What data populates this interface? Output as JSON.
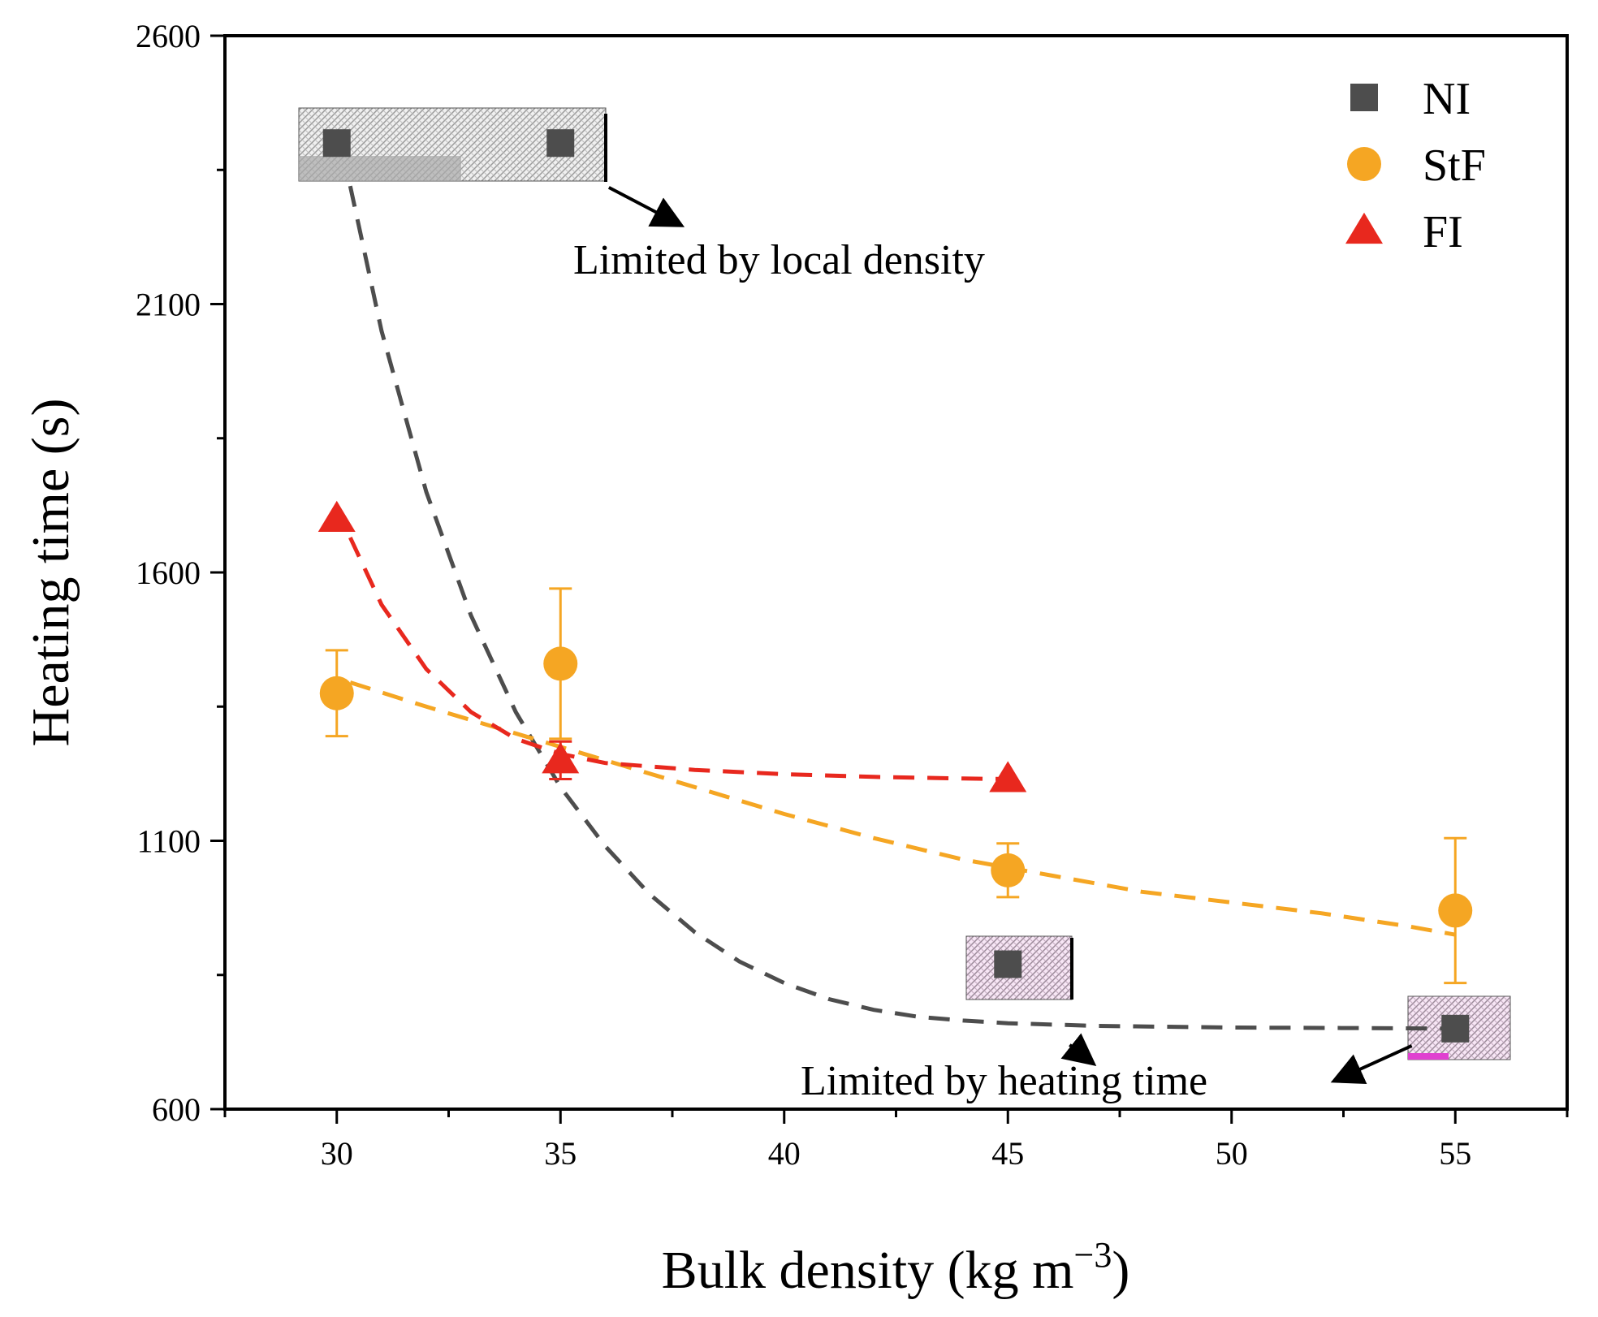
{
  "chart_data": {
    "type": "scatter",
    "xlabel": "Bulk density (kg m−3)",
    "ylabel": "Heating time (s)",
    "xlim": [
      27.5,
      57.5
    ],
    "ylim": [
      600,
      2600
    ],
    "x_ticks": [
      30,
      35,
      40,
      45,
      50,
      55
    ],
    "y_ticks": [
      600,
      1100,
      1600,
      2100,
      2600
    ],
    "legend_position": "top-right",
    "series": [
      {
        "name": "NI",
        "marker": "square",
        "color": "#4d4d4d",
        "points": [
          {
            "x": 30,
            "y": 2400
          },
          {
            "x": 35,
            "y": 2400
          },
          {
            "x": 45,
            "y": 870
          },
          {
            "x": 55,
            "y": 750
          }
        ],
        "fit": [
          {
            "x": 30.3,
            "y": 2320
          },
          {
            "x": 31,
            "y": 2050
          },
          {
            "x": 32,
            "y": 1750
          },
          {
            "x": 33,
            "y": 1520
          },
          {
            "x": 34,
            "y": 1340
          },
          {
            "x": 35,
            "y": 1200
          },
          {
            "x": 36,
            "y": 1090
          },
          {
            "x": 37,
            "y": 1000
          },
          {
            "x": 38,
            "y": 930
          },
          {
            "x": 39,
            "y": 875
          },
          {
            "x": 40,
            "y": 835
          },
          {
            "x": 41,
            "y": 805
          },
          {
            "x": 42,
            "y": 785
          },
          {
            "x": 43,
            "y": 772
          },
          {
            "x": 44,
            "y": 765
          },
          {
            "x": 45,
            "y": 760
          },
          {
            "x": 47,
            "y": 755
          },
          {
            "x": 50,
            "y": 752
          },
          {
            "x": 53,
            "y": 751
          },
          {
            "x": 55,
            "y": 750
          }
        ]
      },
      {
        "name": "StF",
        "marker": "circle",
        "color": "#f5a623",
        "points": [
          {
            "x": 30,
            "y": 1375,
            "err": 80
          },
          {
            "x": 35,
            "y": 1430,
            "err": 140
          },
          {
            "x": 45,
            "y": 1045,
            "err": 50
          },
          {
            "x": 55,
            "y": 970,
            "err": 135
          }
        ],
        "fit": [
          {
            "x": 30.3,
            "y": 1395
          },
          {
            "x": 32,
            "y": 1350
          },
          {
            "x": 34,
            "y": 1300
          },
          {
            "x": 36,
            "y": 1250
          },
          {
            "x": 38,
            "y": 1200
          },
          {
            "x": 40,
            "y": 1150
          },
          {
            "x": 42,
            "y": 1105
          },
          {
            "x": 44,
            "y": 1065
          },
          {
            "x": 46,
            "y": 1035
          },
          {
            "x": 48,
            "y": 1005
          },
          {
            "x": 50,
            "y": 985
          },
          {
            "x": 52,
            "y": 965
          },
          {
            "x": 54,
            "y": 940
          },
          {
            "x": 55,
            "y": 925
          }
        ]
      },
      {
        "name": "FI",
        "marker": "triangle",
        "color": "#e8281e",
        "points": [
          {
            "x": 30,
            "y": 1700
          },
          {
            "x": 35,
            "y": 1250,
            "err": 35
          },
          {
            "x": 45,
            "y": 1215
          }
        ],
        "fit": [
          {
            "x": 30.3,
            "y": 1665
          },
          {
            "x": 31,
            "y": 1540
          },
          {
            "x": 32,
            "y": 1420
          },
          {
            "x": 33,
            "y": 1340
          },
          {
            "x": 34,
            "y": 1290
          },
          {
            "x": 35,
            "y": 1262
          },
          {
            "x": 36,
            "y": 1245
          },
          {
            "x": 38,
            "y": 1232
          },
          {
            "x": 40,
            "y": 1224
          },
          {
            "x": 42,
            "y": 1219
          },
          {
            "x": 44,
            "y": 1216
          },
          {
            "x": 45,
            "y": 1215
          }
        ]
      }
    ],
    "annotations": [
      {
        "text": "Limited by local density",
        "arrow_to": {
          "x": 35.9,
          "y": 2340
        }
      },
      {
        "text": "Limited by heating time",
        "arrow_to": [
          {
            "x": 46.2,
            "y": 750
          },
          {
            "x": 53.7,
            "y": 700
          }
        ]
      }
    ]
  }
}
